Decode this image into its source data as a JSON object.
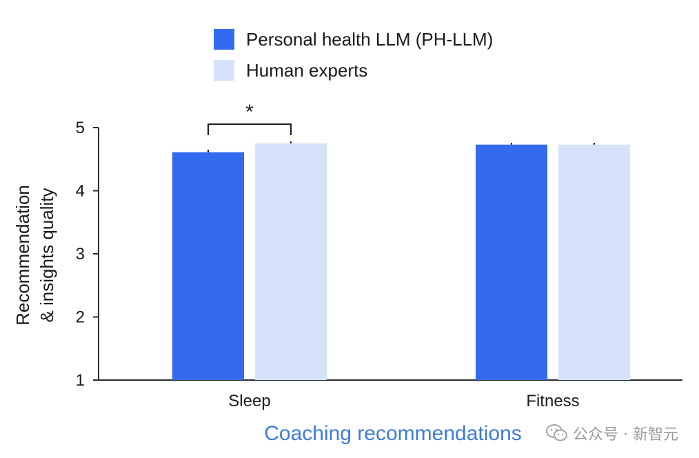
{
  "chart_data": {
    "type": "bar",
    "categories": [
      "Sleep",
      "Fitness"
    ],
    "series": [
      {
        "name": "Personal health LLM (PH-LLM)",
        "color": "#336AF0",
        "values": [
          4.61,
          4.73
        ],
        "errors": [
          0.04,
          0.03
        ]
      },
      {
        "name": "Human experts",
        "color": "#D6E2FA",
        "values": [
          4.75,
          4.73
        ],
        "errors": [
          0.03,
          0.03
        ]
      }
    ],
    "ylabel_line1": "Recommendation",
    "ylabel_line2": "& insights quality",
    "xlabel": "Coaching recommendations",
    "xlabel_color": "#3D7BDB",
    "ylim": [
      1,
      5
    ],
    "yticks": [
      1,
      2,
      3,
      4,
      5
    ],
    "significance": {
      "category": "Sleep",
      "symbol": "*"
    },
    "legend_position": "top-center",
    "grid": false
  },
  "watermark": {
    "text": "公众号 · 新智元",
    "icon": "wechat-icon"
  }
}
